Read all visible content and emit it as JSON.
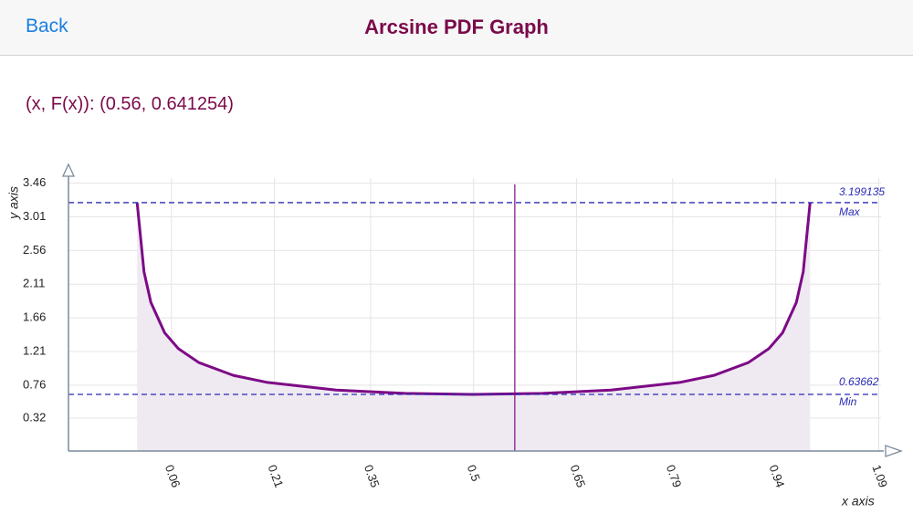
{
  "header": {
    "back": "Back",
    "title": "Arcsine PDF Graph"
  },
  "readout": "(x, F(x)): (0.56, 0.641254)",
  "chart_data": {
    "type": "area",
    "x_label": "x axis",
    "y_label": "y axis",
    "x": [
      0.01,
      0.02,
      0.03,
      0.05,
      0.07,
      0.1,
      0.15,
      0.2,
      0.3,
      0.4,
      0.5,
      0.6,
      0.7,
      0.8,
      0.85,
      0.9,
      0.93,
      0.95,
      0.97,
      0.98,
      0.99
    ],
    "values": [
      3.199,
      2.274,
      1.866,
      1.461,
      1.248,
      1.061,
      0.891,
      0.796,
      0.695,
      0.65,
      0.6366,
      0.65,
      0.695,
      0.796,
      0.891,
      1.061,
      1.248,
      1.461,
      1.866,
      2.274,
      3.199
    ],
    "color": "#7d0a86",
    "fill": "#efe9f1",
    "xlim": [
      -0.09,
      1.1
    ],
    "ylim": [
      -0.12,
      3.65
    ],
    "xticks": [
      0.06,
      0.21,
      0.35,
      0.5,
      0.65,
      0.79,
      0.94,
      1.09
    ],
    "yticks": [
      0.32,
      0.76,
      1.21,
      1.66,
      2.11,
      2.56,
      3.01,
      3.46
    ],
    "grid": true,
    "cursor_x": 0.56,
    "max_line": {
      "value": 3.199135,
      "label": "Max"
    },
    "min_line": {
      "value": 0.63662,
      "label": "Min"
    }
  }
}
